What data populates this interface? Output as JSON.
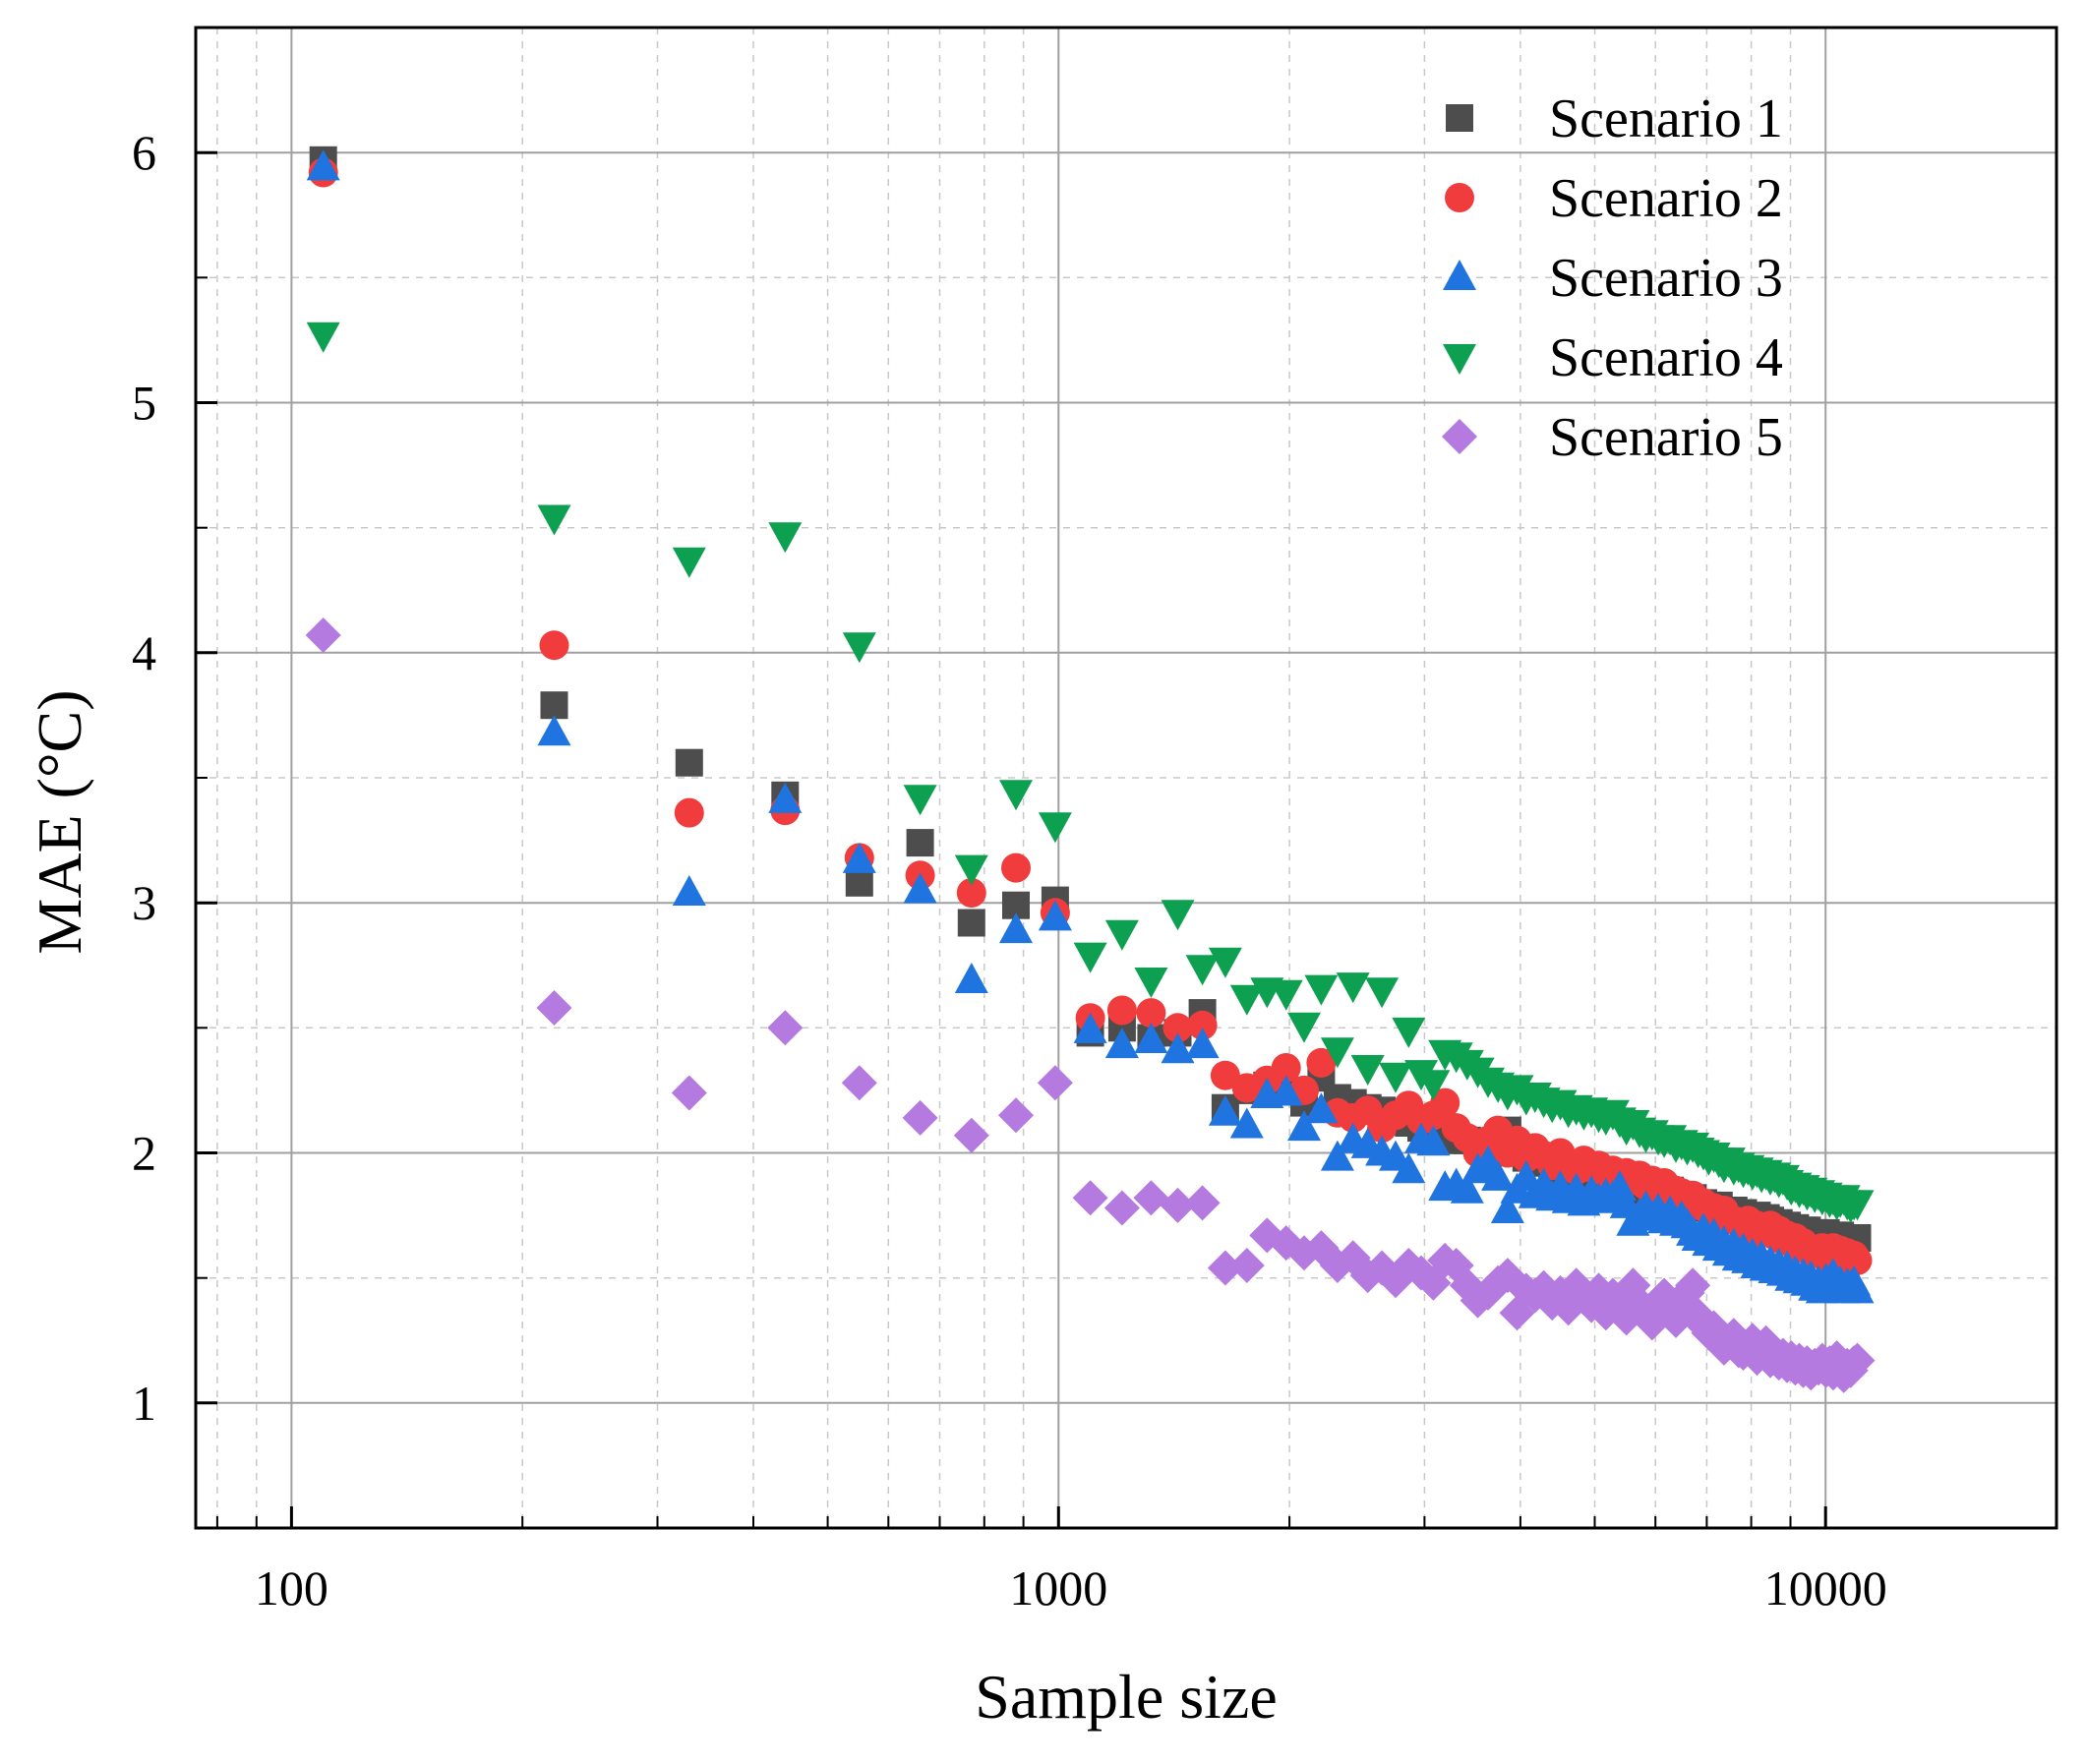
{
  "chart_data": {
    "type": "scatter",
    "title": "",
    "xlabel": "Sample size",
    "ylabel": "MAE (°C)",
    "x_scale": "log",
    "xlim": [
      75,
      20000
    ],
    "ylim": [
      0.5,
      6.5
    ],
    "x_ticks": [
      100,
      1000,
      10000
    ],
    "x_tick_labels": [
      "100",
      "1000",
      "10000"
    ],
    "y_ticks": [
      1,
      2,
      3,
      4,
      5,
      6
    ],
    "y_tick_labels": [
      "1",
      "2",
      "3",
      "4",
      "5",
      "6"
    ],
    "grid": true,
    "legend_position": "top-right",
    "x": [
      110,
      220,
      330,
      440,
      550,
      660,
      770,
      880,
      990,
      1100,
      1210,
      1320,
      1430,
      1540,
      1650,
      1760,
      1870,
      1980,
      2090,
      2200,
      2310,
      2420,
      2530,
      2640,
      2750,
      2860,
      2970,
      3080,
      3190,
      3300,
      3410,
      3520,
      3630,
      3740,
      3850,
      3960,
      4070,
      4180,
      4290,
      4400,
      4510,
      4620,
      4730,
      4840,
      4950,
      5060,
      5170,
      5280,
      5390,
      5500,
      5610,
      5720,
      5830,
      5940,
      6050,
      6160,
      6270,
      6380,
      6490,
      6600,
      6710,
      6820,
      6930,
      7040,
      7150,
      7260,
      7370,
      7480,
      7590,
      7700,
      7810,
      7920,
      8030,
      8140,
      8250,
      8360,
      8470,
      8580,
      8690,
      8800,
      8910,
      9020,
      9130,
      9240,
      9350,
      9460,
      9570,
      9680,
      9790,
      9900,
      10010,
      10120,
      10230,
      10340,
      10450,
      10560,
      10670,
      10780,
      10890,
      11000
    ],
    "series": [
      {
        "name": "Scenario 1",
        "marker": "square",
        "color": "#4d4d4d",
        "values": [
          5.97,
          3.79,
          3.56,
          3.43,
          3.08,
          3.24,
          2.92,
          2.99,
          3.01,
          2.48,
          2.5,
          2.46,
          2.48,
          2.56,
          2.18,
          2.25,
          2.27,
          2.25,
          2.2,
          2.3,
          2.22,
          2.2,
          2.18,
          2.17,
          2.16,
          2.12,
          2.1,
          2.13,
          2.1,
          2.05,
          2.05,
          2.03,
          2.02,
          2.06,
          2.09,
          2.0,
          1.98,
          1.99,
          1.96,
          1.92,
          1.97,
          1.94,
          1.91,
          1.94,
          1.91,
          1.92,
          1.89,
          1.9,
          1.88,
          1.89,
          1.87,
          1.88,
          1.85,
          1.86,
          1.84,
          1.85,
          1.85,
          1.82,
          1.83,
          1.8,
          1.82,
          1.78,
          1.8,
          1.79,
          1.77,
          1.79,
          1.77,
          1.76,
          1.77,
          1.74,
          1.76,
          1.74,
          1.73,
          1.75,
          1.72,
          1.74,
          1.73,
          1.71,
          1.72,
          1.7,
          1.71,
          1.69,
          1.7,
          1.68,
          1.69,
          1.69,
          1.67,
          1.68,
          1.66,
          1.67,
          1.68,
          1.66,
          1.67,
          1.65,
          1.67,
          1.66,
          1.66,
          1.65,
          1.66,
          1.66
        ]
      },
      {
        "name": "Scenario 2",
        "marker": "circle",
        "color": "#f03c3c",
        "values": [
          5.92,
          4.03,
          3.36,
          3.37,
          3.18,
          3.11,
          3.04,
          3.14,
          2.96,
          2.54,
          2.57,
          2.56,
          2.5,
          2.51,
          2.31,
          2.26,
          2.29,
          2.34,
          2.25,
          2.36,
          2.16,
          2.14,
          2.17,
          2.1,
          2.15,
          2.19,
          2.13,
          2.15,
          2.2,
          2.1,
          2.06,
          2.0,
          2.05,
          2.09,
          2.0,
          2.05,
          1.98,
          2.02,
          1.99,
          1.95,
          2.0,
          1.96,
          1.93,
          1.97,
          1.94,
          1.95,
          1.92,
          1.93,
          1.9,
          1.92,
          1.89,
          1.91,
          1.87,
          1.89,
          1.86,
          1.88,
          1.84,
          1.85,
          1.84,
          1.81,
          1.83,
          1.79,
          1.8,
          1.77,
          1.78,
          1.76,
          1.77,
          1.74,
          1.73,
          1.72,
          1.7,
          1.73,
          1.69,
          1.71,
          1.68,
          1.7,
          1.71,
          1.67,
          1.69,
          1.65,
          1.67,
          1.64,
          1.66,
          1.62,
          1.64,
          1.62,
          1.6,
          1.61,
          1.6,
          1.62,
          1.58,
          1.6,
          1.62,
          1.59,
          1.61,
          1.58,
          1.6,
          1.57,
          1.59,
          1.57
        ]
      },
      {
        "name": "Scenario 3",
        "marker": "triangle-up",
        "color": "#1f74e0",
        "values": [
          5.94,
          3.68,
          3.04,
          3.41,
          3.17,
          3.05,
          2.69,
          2.89,
          2.94,
          2.49,
          2.43,
          2.45,
          2.41,
          2.43,
          2.16,
          2.11,
          2.23,
          2.24,
          2.1,
          2.17,
          1.98,
          2.05,
          2.03,
          2.0,
          1.98,
          1.93,
          2.05,
          2.04,
          1.86,
          1.87,
          1.85,
          1.93,
          1.96,
          1.9,
          1.77,
          1.85,
          1.9,
          1.83,
          1.87,
          1.82,
          1.86,
          1.81,
          1.85,
          1.8,
          1.84,
          1.81,
          1.83,
          1.82,
          1.86,
          1.79,
          1.72,
          1.75,
          1.78,
          1.74,
          1.77,
          1.73,
          1.76,
          1.72,
          1.74,
          1.71,
          1.68,
          1.66,
          1.69,
          1.64,
          1.67,
          1.62,
          1.64,
          1.6,
          1.63,
          1.58,
          1.61,
          1.57,
          1.59,
          1.55,
          1.58,
          1.54,
          1.56,
          1.53,
          1.55,
          1.52,
          1.54,
          1.5,
          1.52,
          1.49,
          1.51,
          1.48,
          1.5,
          1.46,
          1.48,
          1.45,
          1.49,
          1.47,
          1.51,
          1.46,
          1.48,
          1.45,
          1.47,
          1.46,
          1.48,
          1.45
        ]
      },
      {
        "name": "Scenario 4",
        "marker": "triangle-down",
        "color": "#0da050",
        "values": [
          5.27,
          4.54,
          4.37,
          4.47,
          4.03,
          3.42,
          3.14,
          3.44,
          3.31,
          2.79,
          2.88,
          2.69,
          2.96,
          2.74,
          2.77,
          2.62,
          2.65,
          2.64,
          2.51,
          2.66,
          2.41,
          2.67,
          2.34,
          2.65,
          2.31,
          2.49,
          2.32,
          2.28,
          2.4,
          2.39,
          2.36,
          2.33,
          2.29,
          2.27,
          2.24,
          2.26,
          2.22,
          2.23,
          2.21,
          2.19,
          2.2,
          2.17,
          2.18,
          2.16,
          2.17,
          2.15,
          2.14,
          2.16,
          2.13,
          2.1,
          2.12,
          2.09,
          2.07,
          2.08,
          2.06,
          2.05,
          2.06,
          2.03,
          2.04,
          2.02,
          2.03,
          2.01,
          2.0,
          1.98,
          1.99,
          1.97,
          1.95,
          1.97,
          1.94,
          1.95,
          1.93,
          1.94,
          1.92,
          1.93,
          1.91,
          1.92,
          1.9,
          1.91,
          1.89,
          1.9,
          1.88,
          1.86,
          1.87,
          1.85,
          1.86,
          1.84,
          1.85,
          1.83,
          1.84,
          1.82,
          1.83,
          1.81,
          1.82,
          1.8,
          1.81,
          1.82,
          1.8,
          1.79,
          1.8,
          1.8
        ]
      },
      {
        "name": "Scenario 5",
        "marker": "diamond",
        "color": "#b47ae0",
        "values": [
          4.07,
          2.58,
          2.24,
          2.5,
          2.28,
          2.14,
          2.07,
          2.15,
          2.28,
          1.82,
          1.78,
          1.82,
          1.79,
          1.8,
          1.54,
          1.55,
          1.67,
          1.64,
          1.6,
          1.62,
          1.55,
          1.58,
          1.51,
          1.54,
          1.49,
          1.55,
          1.52,
          1.48,
          1.57,
          1.55,
          1.47,
          1.41,
          1.44,
          1.48,
          1.51,
          1.36,
          1.45,
          1.43,
          1.46,
          1.4,
          1.44,
          1.38,
          1.47,
          1.42,
          1.39,
          1.45,
          1.36,
          1.43,
          1.38,
          1.34,
          1.47,
          1.4,
          1.36,
          1.32,
          1.39,
          1.43,
          1.37,
          1.33,
          1.4,
          1.44,
          1.47,
          1.35,
          1.31,
          1.28,
          1.3,
          1.26,
          1.22,
          1.25,
          1.27,
          1.21,
          1.2,
          1.23,
          1.25,
          1.18,
          1.21,
          1.24,
          1.17,
          1.2,
          1.16,
          1.19,
          1.15,
          1.18,
          1.14,
          1.17,
          1.13,
          1.16,
          1.12,
          1.15,
          1.14,
          1.17,
          1.13,
          1.16,
          1.12,
          1.18,
          1.14,
          1.11,
          1.15,
          1.13,
          1.16,
          1.17
        ]
      }
    ]
  }
}
